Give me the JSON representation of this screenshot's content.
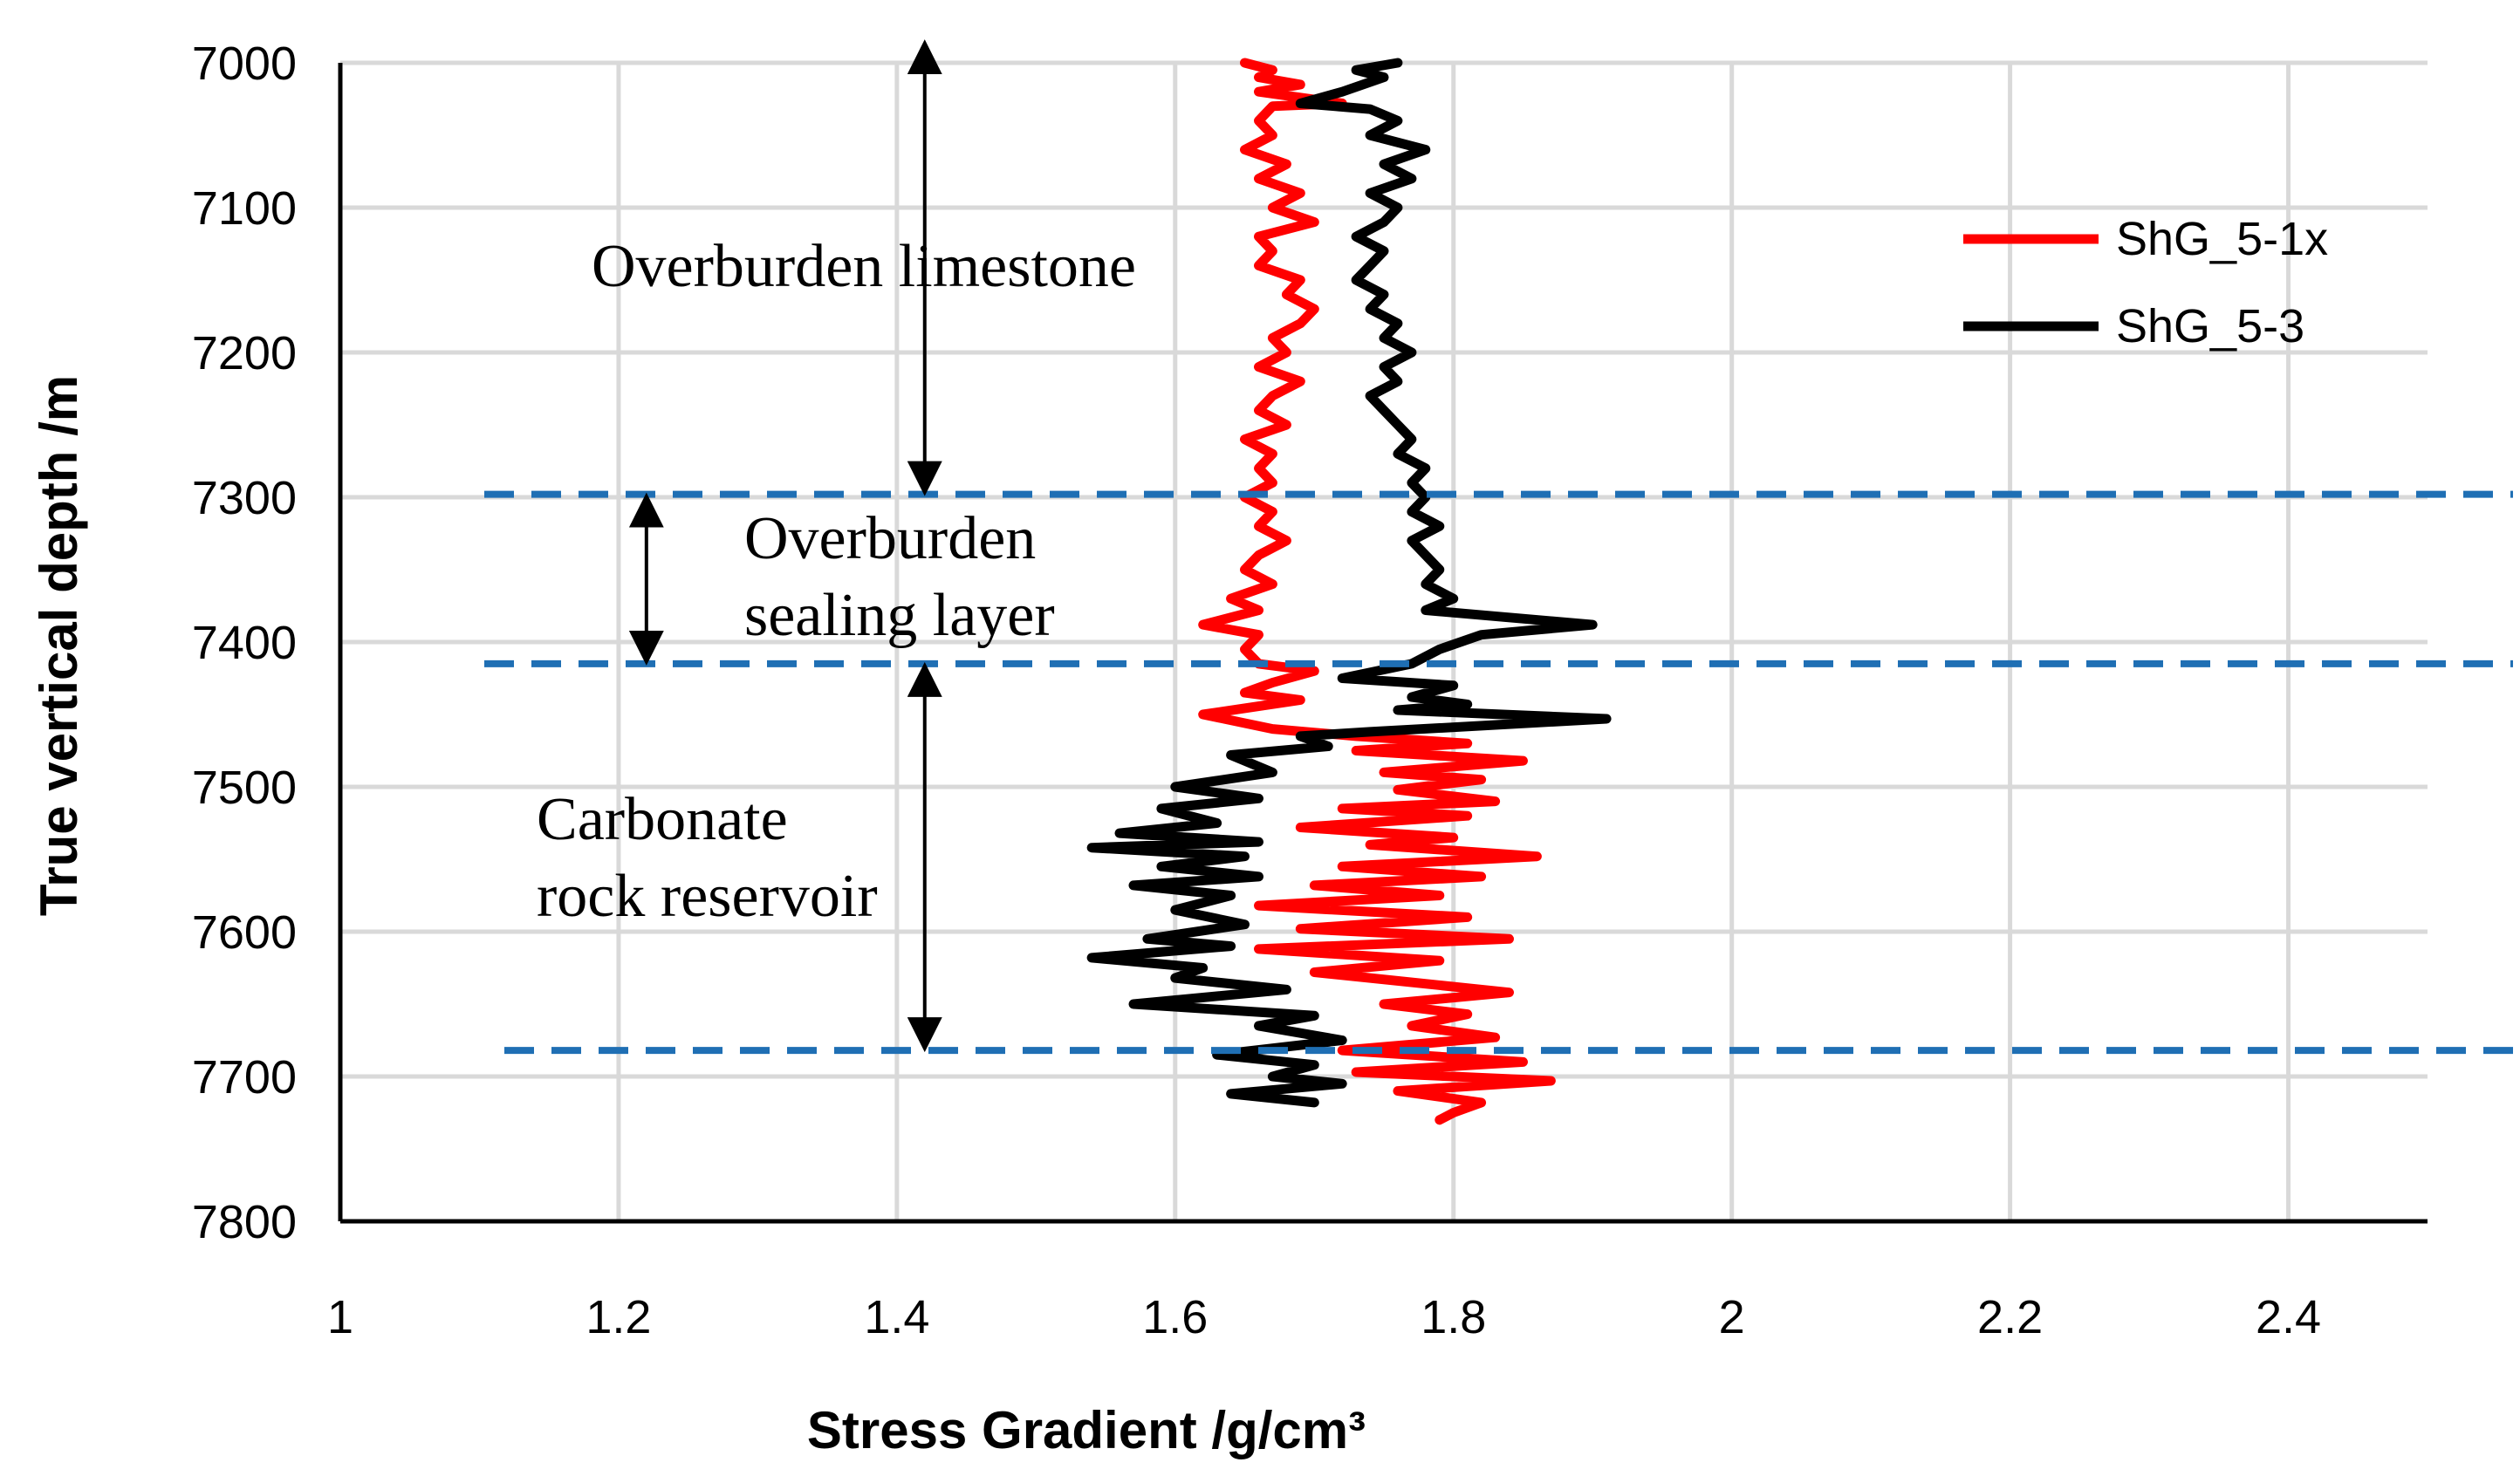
{
  "chart_data": {
    "type": "line",
    "orientation": "depth-profile",
    "title": "",
    "xlabel": "Stress Gradient /g/cm³",
    "ylabel": "True vertical depth /m",
    "xlim": [
      1,
      2.5
    ],
    "ylim": [
      7000,
      7800
    ],
    "y_inverted": true,
    "grid": true,
    "x_ticks": [
      "1",
      "1.2",
      "1.4",
      "1.6",
      "1.8",
      "2",
      "2.2",
      "2.4"
    ],
    "y_ticks": [
      "7000",
      "7100",
      "7200",
      "7300",
      "7400",
      "7500",
      "7600",
      "7700",
      "7800"
    ],
    "legend_position": "top-right",
    "series": [
      {
        "name": "ShG_5-1x",
        "color": "#ff0000",
        "points": [
          [
            1.65,
            7000
          ],
          [
            1.67,
            7005
          ],
          [
            1.66,
            7010
          ],
          [
            1.69,
            7015
          ],
          [
            1.66,
            7020
          ],
          [
            1.72,
            7028
          ],
          [
            1.67,
            7030
          ],
          [
            1.66,
            7040
          ],
          [
            1.67,
            7050
          ],
          [
            1.65,
            7060
          ],
          [
            1.68,
            7070
          ],
          [
            1.66,
            7080
          ],
          [
            1.69,
            7090
          ],
          [
            1.67,
            7100
          ],
          [
            1.7,
            7110
          ],
          [
            1.66,
            7120
          ],
          [
            1.67,
            7130
          ],
          [
            1.66,
            7140
          ],
          [
            1.69,
            7150
          ],
          [
            1.68,
            7160
          ],
          [
            1.7,
            7170
          ],
          [
            1.69,
            7180
          ],
          [
            1.67,
            7190
          ],
          [
            1.68,
            7200
          ],
          [
            1.66,
            7210
          ],
          [
            1.69,
            7220
          ],
          [
            1.67,
            7230
          ],
          [
            1.66,
            7240
          ],
          [
            1.68,
            7250
          ],
          [
            1.65,
            7260
          ],
          [
            1.67,
            7270
          ],
          [
            1.66,
            7280
          ],
          [
            1.67,
            7290
          ],
          [
            1.65,
            7300
          ],
          [
            1.67,
            7310
          ],
          [
            1.66,
            7320
          ],
          [
            1.68,
            7330
          ],
          [
            1.66,
            7340
          ],
          [
            1.65,
            7350
          ],
          [
            1.67,
            7360
          ],
          [
            1.64,
            7370
          ],
          [
            1.66,
            7378
          ],
          [
            1.62,
            7388
          ],
          [
            1.66,
            7395
          ],
          [
            1.65,
            7405
          ],
          [
            1.66,
            7415
          ],
          [
            1.7,
            7420
          ],
          [
            1.67,
            7428
          ],
          [
            1.65,
            7435
          ],
          [
            1.69,
            7440
          ],
          [
            1.62,
            7450
          ],
          [
            1.67,
            7460
          ],
          [
            1.73,
            7465
          ],
          [
            1.81,
            7470
          ],
          [
            1.73,
            7475
          ],
          [
            1.85,
            7482
          ],
          [
            1.75,
            7490
          ],
          [
            1.82,
            7495
          ],
          [
            1.76,
            7502
          ],
          [
            1.83,
            7510
          ],
          [
            1.72,
            7515
          ],
          [
            1.81,
            7520
          ],
          [
            1.69,
            7528
          ],
          [
            1.8,
            7535
          ],
          [
            1.74,
            7540
          ],
          [
            1.86,
            7548
          ],
          [
            1.72,
            7555
          ],
          [
            1.82,
            7562
          ],
          [
            1.7,
            7568
          ],
          [
            1.79,
            7575
          ],
          [
            1.66,
            7582
          ],
          [
            1.81,
            7590
          ],
          [
            1.69,
            7598
          ],
          [
            1.84,
            7605
          ],
          [
            1.66,
            7612
          ],
          [
            1.79,
            7620
          ],
          [
            1.7,
            7628
          ],
          [
            1.84,
            7642
          ],
          [
            1.75,
            7650
          ],
          [
            1.81,
            7657
          ],
          [
            1.77,
            7665
          ],
          [
            1.83,
            7673
          ],
          [
            1.72,
            7682
          ],
          [
            1.85,
            7690
          ],
          [
            1.73,
            7697
          ],
          [
            1.87,
            7703
          ],
          [
            1.76,
            7710
          ],
          [
            1.82,
            7718
          ],
          [
            1.8,
            7725
          ],
          [
            1.79,
            7730
          ]
        ]
      },
      {
        "name": "ShG_5-3",
        "color": "#000000",
        "points": [
          [
            1.76,
            7000
          ],
          [
            1.73,
            7005
          ],
          [
            1.75,
            7010
          ],
          [
            1.72,
            7020
          ],
          [
            1.69,
            7028
          ],
          [
            1.74,
            7032
          ],
          [
            1.76,
            7040
          ],
          [
            1.74,
            7050
          ],
          [
            1.78,
            7060
          ],
          [
            1.75,
            7070
          ],
          [
            1.77,
            7080
          ],
          [
            1.74,
            7090
          ],
          [
            1.76,
            7100
          ],
          [
            1.75,
            7110
          ],
          [
            1.73,
            7120
          ],
          [
            1.75,
            7130
          ],
          [
            1.74,
            7140
          ],
          [
            1.73,
            7150
          ],
          [
            1.75,
            7160
          ],
          [
            1.74,
            7170
          ],
          [
            1.76,
            7180
          ],
          [
            1.75,
            7190
          ],
          [
            1.77,
            7200
          ],
          [
            1.75,
            7210
          ],
          [
            1.76,
            7220
          ],
          [
            1.74,
            7230
          ],
          [
            1.75,
            7240
          ],
          [
            1.76,
            7250
          ],
          [
            1.77,
            7260
          ],
          [
            1.76,
            7270
          ],
          [
            1.78,
            7280
          ],
          [
            1.77,
            7290
          ],
          [
            1.78,
            7300
          ],
          [
            1.77,
            7310
          ],
          [
            1.79,
            7320
          ],
          [
            1.77,
            7330
          ],
          [
            1.78,
            7340
          ],
          [
            1.79,
            7350
          ],
          [
            1.78,
            7360
          ],
          [
            1.8,
            7370
          ],
          [
            1.78,
            7378
          ],
          [
            1.9,
            7388
          ],
          [
            1.82,
            7395
          ],
          [
            1.79,
            7405
          ],
          [
            1.77,
            7415
          ],
          [
            1.72,
            7425
          ],
          [
            1.8,
            7430
          ],
          [
            1.77,
            7438
          ],
          [
            1.81,
            7443
          ],
          [
            1.76,
            7447
          ],
          [
            1.91,
            7453
          ],
          [
            1.74,
            7462
          ],
          [
            1.69,
            7465
          ],
          [
            1.71,
            7472
          ],
          [
            1.64,
            7478
          ],
          [
            1.67,
            7490
          ],
          [
            1.6,
            7500
          ],
          [
            1.66,
            7508
          ],
          [
            1.59,
            7515
          ],
          [
            1.63,
            7525
          ],
          [
            1.56,
            7532
          ],
          [
            1.66,
            7538
          ],
          [
            1.54,
            7542
          ],
          [
            1.65,
            7548
          ],
          [
            1.59,
            7555
          ],
          [
            1.66,
            7562
          ],
          [
            1.57,
            7568
          ],
          [
            1.64,
            7575
          ],
          [
            1.6,
            7585
          ],
          [
            1.65,
            7595
          ],
          [
            1.58,
            7605
          ],
          [
            1.64,
            7610
          ],
          [
            1.54,
            7618
          ],
          [
            1.62,
            7625
          ],
          [
            1.6,
            7632
          ],
          [
            1.68,
            7640
          ],
          [
            1.57,
            7650
          ],
          [
            1.7,
            7658
          ],
          [
            1.66,
            7665
          ],
          [
            1.72,
            7675
          ],
          [
            1.63,
            7685
          ],
          [
            1.7,
            7692
          ],
          [
            1.67,
            7700
          ],
          [
            1.72,
            7705
          ],
          [
            1.64,
            7712
          ],
          [
            1.7,
            7718
          ]
        ]
      }
    ],
    "reference_lines": [
      7298,
      7415,
      7682
    ],
    "annotations": {
      "zone1": [
        "Overburden limestone"
      ],
      "zone2": [
        "Overburden",
        "sealing layer"
      ],
      "zone3": [
        "Carbonate",
        "rock reservoir"
      ]
    },
    "arrows": [
      {
        "x": 1.42,
        "y_from": 6985,
        "y_to": 7298
      },
      {
        "x": 1.22,
        "y_from": 7298,
        "y_to": 7415
      },
      {
        "x": 1.42,
        "y_from": 7415,
        "y_to": 7682
      }
    ]
  }
}
